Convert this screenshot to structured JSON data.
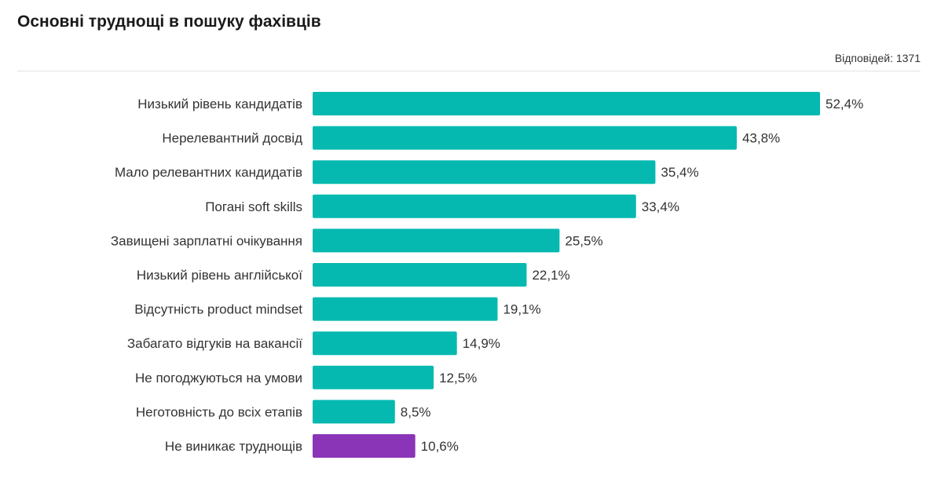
{
  "header": {
    "title": "Основні труднощі в пошуку фахівців",
    "responses": "Відповідей: 1371"
  },
  "colors": {
    "primary": "#06b9b0",
    "highlight": "#8a35b8"
  },
  "chart_data": {
    "type": "bar",
    "orientation": "horizontal",
    "title": "Основні труднощі в пошуку фахівців",
    "xlabel": "",
    "ylabel": "",
    "unit": "%",
    "categories": [
      "Низький рівень кандидатів",
      "Нерелевантний досвід",
      "Мало релевантних кандидатів",
      "Погані soft skills",
      "Завищені зарплатні очікування",
      "Низький рівень англійської",
      "Відсутність product mindset",
      "Забагато відгуків на вакансії",
      "Не погоджуються на умови",
      "Неготовність до всіх етапів",
      "Не виникає труднощів"
    ],
    "values": [
      52.4,
      43.8,
      35.4,
      33.4,
      25.5,
      22.1,
      19.1,
      14.9,
      12.5,
      8.5,
      10.6
    ],
    "value_labels": [
      "52,4%",
      "43,8%",
      "35,4%",
      "33,4%",
      "25,5%",
      "22,1%",
      "19,1%",
      "14,9%",
      "12,5%",
      "8,5%",
      "10,6%"
    ],
    "highlighted_categories": [
      "Не виникає труднощів"
    ],
    "grid": false,
    "legend": "none"
  }
}
